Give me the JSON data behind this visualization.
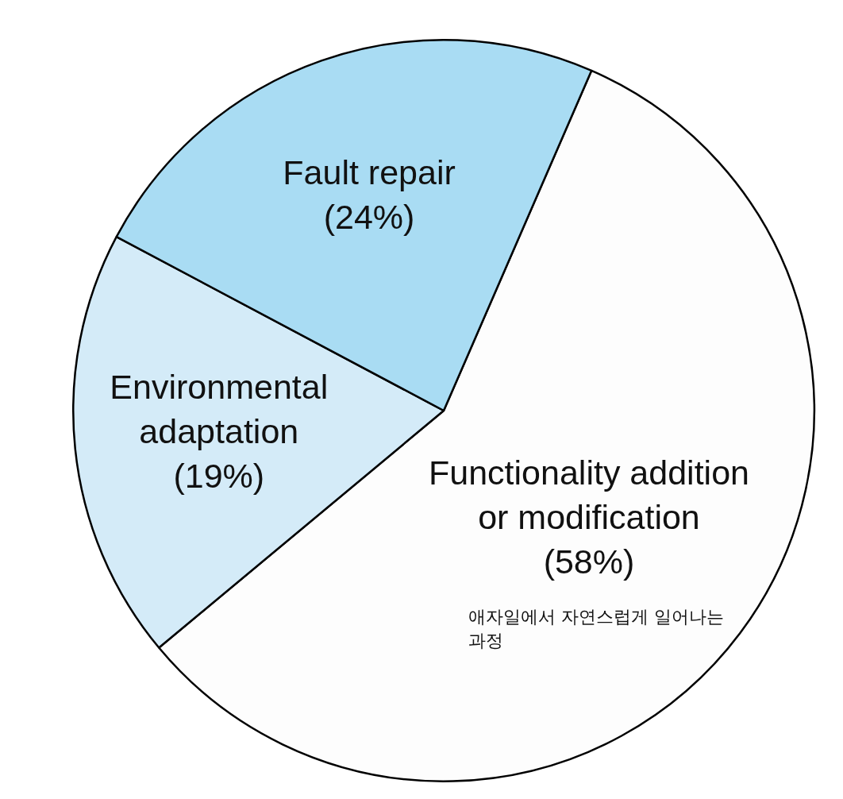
{
  "chart_data": {
    "type": "pie",
    "categories": [
      "Functionality addition or modification",
      "Environmental adaptation",
      "Fault repair"
    ],
    "values": [
      58,
      19,
      24
    ],
    "value_labels": [
      "(58%)",
      "(19%)",
      "(24%)"
    ],
    "colors": [
      "#fdfdfd",
      "#d4ebf8",
      "#a9dcf3"
    ],
    "annotations": [
      "애자일에서 자연스럽게 일어나는 과정"
    ]
  }
}
